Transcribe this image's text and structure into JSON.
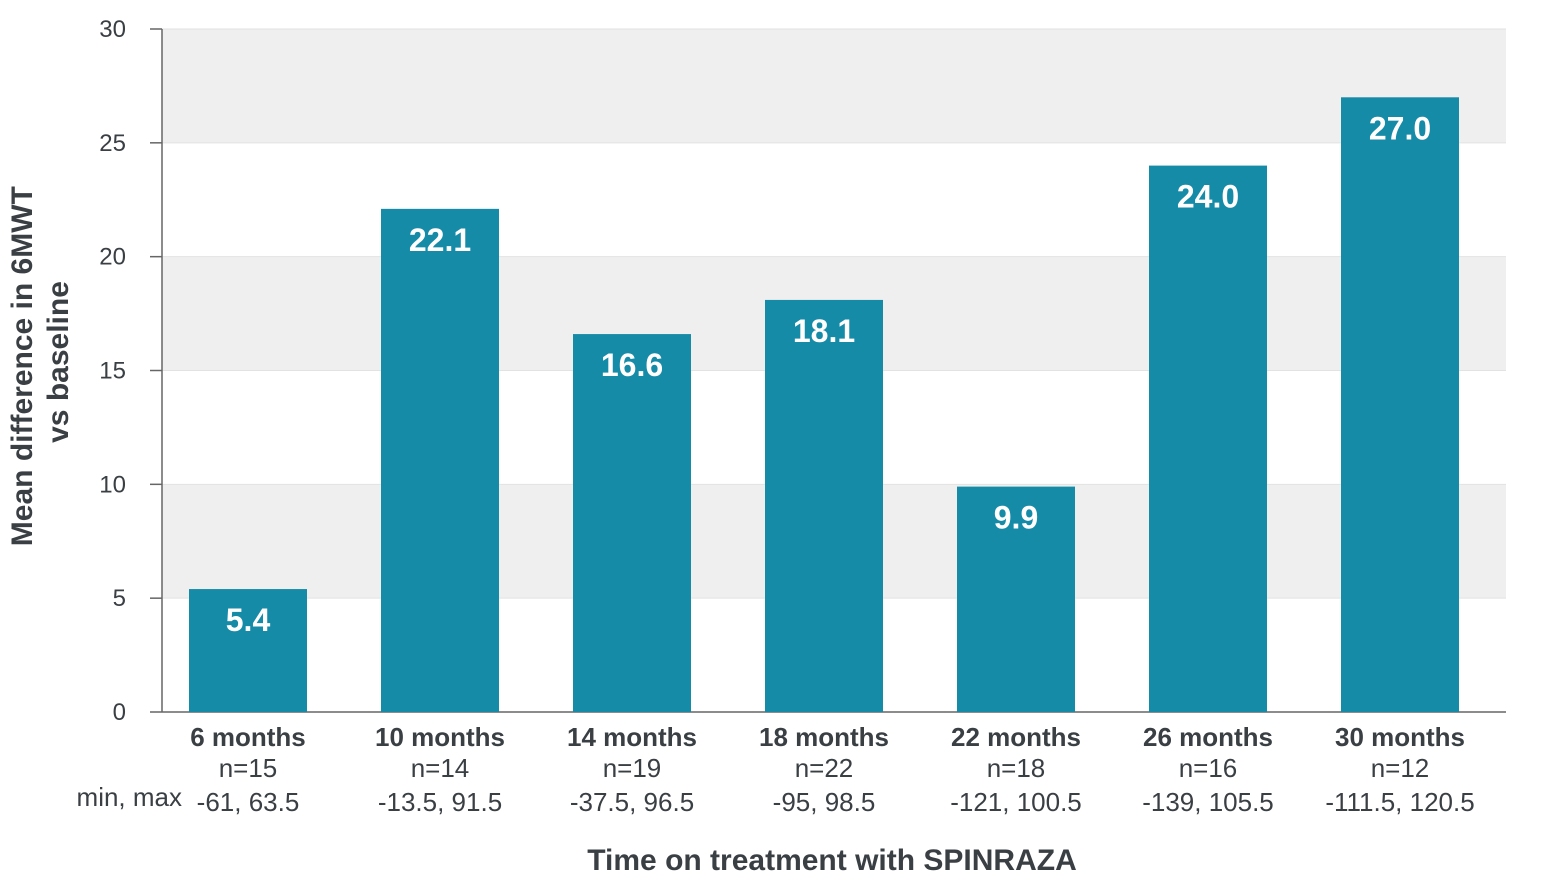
{
  "chart_data": {
    "type": "bar",
    "title": "",
    "xlabel": "Time on treatment with SPINRAZA",
    "ylabel_lines": [
      "Mean difference in 6MWT",
      "vs baseline"
    ],
    "ylim": [
      0,
      30
    ],
    "yticks": [
      0,
      5,
      10,
      15,
      20,
      25,
      30
    ],
    "grid": "alternating horizontal bands",
    "categories": [
      "6 months",
      "10 months",
      "14 months",
      "18 months",
      "22 months",
      "26 months",
      "30 months"
    ],
    "values": [
      5.4,
      22.1,
      16.6,
      18.1,
      9.9,
      24.0,
      27.0
    ],
    "value_labels": [
      "5.4",
      "22.1",
      "16.6",
      "18.1",
      "9.9",
      "24.0",
      "27.0"
    ],
    "n_labels": [
      "n=15",
      "n=14",
      "n=19",
      "n=22",
      "n=18",
      "n=16",
      "n=12"
    ],
    "minmax_row_label": "min, max",
    "minmax_labels": [
      "-61, 63.5",
      "-13.5, 91.5",
      "-37.5, 96.5",
      "-95, 98.5",
      "-121, 100.5",
      "-139, 105.5",
      "-111.5, 120.5"
    ],
    "colors": {
      "bar": "#158ba8",
      "band": "#efefef",
      "axis": "#666666",
      "text": "#3a3f44"
    }
  }
}
